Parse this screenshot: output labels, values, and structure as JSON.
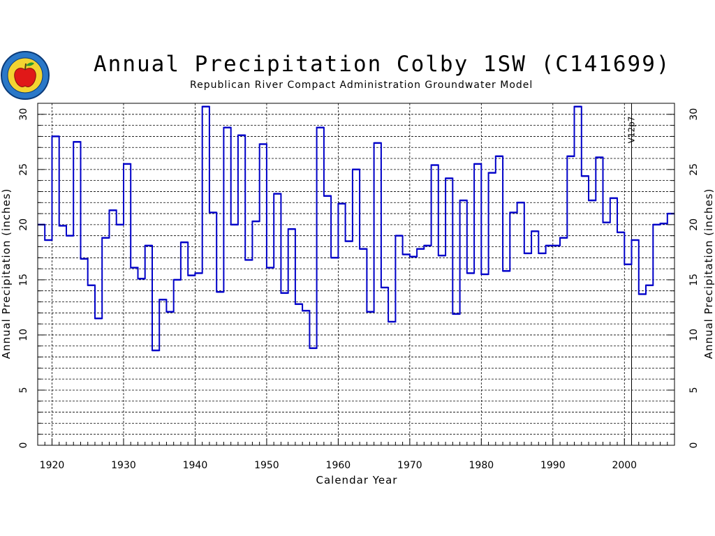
{
  "title": "Annual Precipitation Colby 1SW (C141699)",
  "subtitle": "Republican River Compact Administration Groundwater Model",
  "logo": {
    "name": "apple-seal-logo"
  },
  "colors": {
    "series": "#0000c8",
    "grid": "#000000",
    "background": "#ffffff"
  },
  "chart_data": {
    "type": "line",
    "step": true,
    "title": "Annual Precipitation Colby 1SW (C141699)",
    "subtitle": "Republican River Compact Administration Groundwater Model",
    "xlabel": "Calendar Year",
    "ylabel": "Annual Precipitation (inches)",
    "xlim": [
      1918,
      2007
    ],
    "ylim": [
      0,
      31
    ],
    "xticks": [
      1920,
      1930,
      1940,
      1950,
      1960,
      1970,
      1980,
      1990,
      2000
    ],
    "yticks": [
      0,
      5,
      10,
      15,
      20,
      25,
      30
    ],
    "grid": true,
    "annotation": {
      "text": "V12p7",
      "x": 2001
    },
    "x": [
      1918,
      1919,
      1920,
      1921,
      1922,
      1923,
      1924,
      1925,
      1926,
      1927,
      1928,
      1929,
      1930,
      1931,
      1932,
      1933,
      1934,
      1935,
      1936,
      1937,
      1938,
      1939,
      1940,
      1941,
      1942,
      1943,
      1944,
      1945,
      1946,
      1947,
      1948,
      1949,
      1950,
      1951,
      1952,
      1953,
      1954,
      1955,
      1956,
      1957,
      1958,
      1959,
      1960,
      1961,
      1962,
      1963,
      1964,
      1965,
      1966,
      1967,
      1968,
      1969,
      1970,
      1971,
      1972,
      1973,
      1974,
      1975,
      1976,
      1977,
      1978,
      1979,
      1980,
      1981,
      1982,
      1983,
      1984,
      1985,
      1986,
      1987,
      1988,
      1989,
      1990,
      1991,
      1992,
      1993,
      1994,
      1995,
      1996,
      1997,
      1998,
      1999,
      2000,
      2001,
      2002,
      2003,
      2004,
      2005,
      2006
    ],
    "values": [
      20.0,
      18.6,
      28.0,
      19.9,
      19.0,
      27.5,
      16.9,
      14.5,
      11.5,
      18.8,
      21.3,
      20.0,
      25.5,
      16.1,
      15.1,
      18.1,
      8.6,
      13.2,
      12.1,
      15.0,
      18.4,
      15.4,
      15.6,
      30.7,
      21.1,
      13.9,
      28.8,
      20.0,
      28.1,
      16.8,
      20.3,
      27.3,
      16.1,
      22.8,
      13.8,
      19.6,
      12.8,
      12.2,
      8.8,
      28.8,
      22.6,
      17.0,
      21.9,
      18.5,
      25.0,
      17.8,
      12.1,
      27.4,
      14.3,
      11.2,
      19.0,
      17.3,
      17.1,
      17.8,
      18.1,
      25.4,
      17.2,
      24.2,
      11.9,
      22.2,
      15.6,
      25.5,
      15.5,
      24.7,
      26.2,
      15.8,
      21.1,
      22.0,
      17.4,
      19.4,
      17.4,
      18.1,
      18.1,
      18.8,
      26.2,
      30.7,
      24.4,
      22.2,
      26.1,
      20.2,
      22.4,
      19.3,
      16.4,
      18.6,
      13.7,
      14.5,
      20.0,
      20.1,
      21.0
    ]
  }
}
